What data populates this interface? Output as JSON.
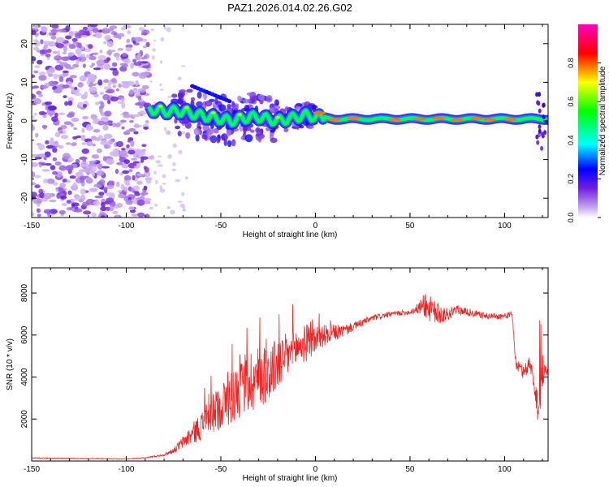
{
  "chart_data": [
    {
      "type": "heatmap",
      "title": "PAZ1.2026.014.02.26.G02",
      "xlabel": "Height of straight line (km)",
      "ylabel": "Frequency (Hz)",
      "xlim": [
        -150,
        123
      ],
      "ylim": [
        -25,
        25
      ],
      "xticks": [
        "-150",
        "-100",
        "-50",
        "0",
        "50",
        "100"
      ],
      "yticks": [
        "20",
        "10",
        "0",
        "-10",
        "-20"
      ],
      "colorbar": {
        "label": "Normalized spectral amplitude",
        "range": [
          0,
          1
        ],
        "ticks": [
          "0.0",
          "0.2",
          "0.4",
          "0.6",
          "0.8"
        ]
      },
      "ridge": [
        {
          "x": -88,
          "f": 3.0
        },
        {
          "x": -80,
          "f": 2.5
        },
        {
          "x": -70,
          "f": 2.5
        },
        {
          "x": -62,
          "f": 1.5
        },
        {
          "x": -55,
          "f": 1.0
        },
        {
          "x": -50,
          "f": 0.5
        },
        {
          "x": -45,
          "f": 0.0
        },
        {
          "x": -40,
          "f": 0.5
        },
        {
          "x": -35,
          "f": 1.0
        },
        {
          "x": -30,
          "f": 1.0
        },
        {
          "x": -25,
          "f": 0.5
        },
        {
          "x": -20,
          "f": 0.0
        },
        {
          "x": -15,
          "f": 0.5
        },
        {
          "x": -10,
          "f": 1.0
        },
        {
          "x": -5,
          "f": 1.5
        },
        {
          "x": 0,
          "f": 1.0
        },
        {
          "x": 10,
          "f": 0.5
        },
        {
          "x": 30,
          "f": 0.5
        },
        {
          "x": 50,
          "f": 0.5
        },
        {
          "x": 70,
          "f": 0.5
        },
        {
          "x": 90,
          "f": 0.5
        },
        {
          "x": 110,
          "f": 0.5
        },
        {
          "x": 118,
          "f": 0.5
        },
        {
          "x": 123,
          "f": 0.5
        }
      ]
    },
    {
      "type": "line",
      "title": "",
      "xlabel": "Height of straight line (km)",
      "ylabel": "SNR (10 * v/v)",
      "xlim": [
        -150,
        123
      ],
      "ylim": [
        0,
        9200
      ],
      "xticks": [
        "-150",
        "-100",
        "-50",
        "0",
        "50",
        "100"
      ],
      "yticks": [
        "2000",
        "4000",
        "6000",
        "8000"
      ],
      "series": [
        {
          "name": "SNR",
          "color": "#ee2222",
          "x": [
            -150,
            -120,
            -100,
            -90,
            -80,
            -75,
            -70,
            -65,
            -60,
            -55,
            -50,
            -45,
            -40,
            -35,
            -30,
            -25,
            -20,
            -15,
            -10,
            -5,
            0,
            5,
            10,
            15,
            20,
            25,
            30,
            40,
            50,
            55,
            58,
            62,
            65,
            70,
            75,
            80,
            90,
            100,
            104,
            106,
            110,
            113,
            115,
            118,
            120,
            123
          ],
          "values": [
            150,
            120,
            100,
            150,
            300,
            500,
            900,
            1300,
            1700,
            2200,
            2600,
            3000,
            3500,
            3800,
            4000,
            4200,
            4600,
            5000,
            5400,
            5600,
            5800,
            6000,
            6100,
            6200,
            6400,
            6600,
            6800,
            7000,
            7100,
            7300,
            7500,
            7100,
            7000,
            7000,
            7200,
            7100,
            6900,
            6900,
            7000,
            4600,
            4200,
            4700,
            4000,
            2400,
            4300,
            4200
          ],
          "noise_amp": [
            15,
            15,
            15,
            20,
            60,
            120,
            300,
            500,
            700,
            900,
            1100,
            1300,
            1500,
            1600,
            1500,
            1400,
            1300,
            1100,
            1000,
            900,
            700,
            500,
            400,
            300,
            200,
            180,
            150,
            120,
            120,
            300,
            700,
            600,
            500,
            300,
            200,
            200,
            150,
            150,
            150,
            300,
            300,
            500,
            300,
            900,
            900,
            100
          ]
        }
      ]
    }
  ]
}
